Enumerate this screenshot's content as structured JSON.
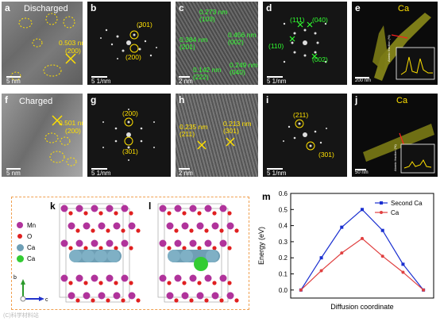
{
  "row1": {
    "a": {
      "letter": "a",
      "title": "Discharged",
      "d_spacing": "0.503 nm",
      "plane": "(200)",
      "scale": "5 nm"
    },
    "b": {
      "letter": "b",
      "p1": "(301)",
      "p2": "(200)",
      "scale": "5 1/nm"
    },
    "c": {
      "letter": "c",
      "t1": "0.273 nm",
      "t1b": "(103)",
      "t2": "0.384 nm",
      "t2b": "(201)",
      "t3": "0.456 nm",
      "t3b": "(002)",
      "t4": "0.142 nm",
      "t4b": "(222)",
      "t5": "0.249 nm",
      "t5b": "(040)",
      "scale": "2 nm"
    },
    "d": {
      "letter": "d",
      "p1": "(111)",
      "p2": "(040)",
      "p3": "(110)",
      "p4": "(002)",
      "scale": "5 1/nm"
    },
    "e": {
      "letter": "e",
      "element": "Ca",
      "inset_ylabel": "Atomic fraction (%)",
      "scale": "200 nm"
    }
  },
  "row2": {
    "f": {
      "letter": "f",
      "title": "Charged",
      "d_spacing": "0.501 nm",
      "plane": "(200)",
      "scale": "5 nm"
    },
    "g": {
      "letter": "g",
      "p1": "(200)",
      "p2": "(301)",
      "scale": "5 1/nm"
    },
    "h": {
      "letter": "h",
      "t1": "0.235 nm",
      "t1b": "(211)",
      "t2": "0.213 nm",
      "t2b": "(301)",
      "scale": "2 nm"
    },
    "i": {
      "letter": "i",
      "p1": "(211)",
      "p2": "(301)",
      "scale": "5 1/nm"
    },
    "j": {
      "letter": "j",
      "element": "Ca",
      "inset_ylabel": "Atomic fraction (%)",
      "scale": "50 nm"
    }
  },
  "structure": {
    "k": "k",
    "l": "l",
    "legend": [
      "Mn",
      "O",
      "Ca",
      "Ca"
    ],
    "axis_b": "b",
    "axis_c": "c",
    "colors": {
      "Mn": "#b0339b",
      "O": "#e02020",
      "Ca_host": "#6f9fb5",
      "Ca_new": "#33cc33"
    }
  },
  "chart_data": {
    "letter": "m",
    "type": "line",
    "xlabel": "Diffusion coordinate",
    "ylabel": "Energy (eV)",
    "ylim": [
      -0.05,
      0.6
    ],
    "yticks": [
      "0.0",
      "0.1",
      "0.2",
      "0.3",
      "0.4",
      "0.5",
      "0.6"
    ],
    "x": [
      0,
      1,
      2,
      3,
      4,
      5,
      6
    ],
    "legend_position": "top-right",
    "series": [
      {
        "name": "Second Ca",
        "color": "#1a2fd0",
        "values": [
          0.0,
          0.2,
          0.39,
          0.5,
          0.37,
          0.16,
          0.0
        ]
      },
      {
        "name": "Ca",
        "color": "#e04040",
        "values": [
          0.0,
          0.12,
          0.23,
          0.32,
          0.21,
          0.11,
          0.0
        ]
      }
    ]
  },
  "watermark": "(C)科学材料站"
}
